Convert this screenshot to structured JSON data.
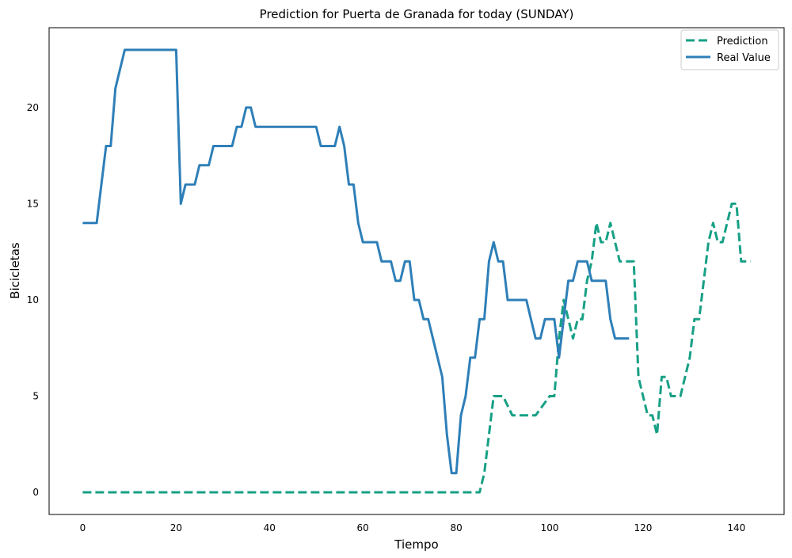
{
  "chart_data": {
    "type": "line",
    "title": "Prediction for Puerta de Granada for today (SUNDAY)",
    "xlabel": "Tiempo",
    "ylabel": "Bicicletas",
    "xlim": [
      -7.2,
      150.2
    ],
    "ylim": [
      -1.15,
      24.15
    ],
    "xticks": [
      0,
      20,
      40,
      60,
      80,
      100,
      120,
      140
    ],
    "yticks": [
      0,
      5,
      10,
      15,
      20
    ],
    "grid": false,
    "legend_position": "top-right",
    "series": [
      {
        "name": "Prediction",
        "color": "#17a085",
        "dash": "dashed",
        "x": [
          0,
          85,
          86,
          88,
          89,
          90,
          92,
          95,
          97,
          100,
          101,
          102,
          103,
          104,
          105,
          106,
          107,
          108,
          109,
          110,
          111,
          112,
          113,
          115,
          117,
          118,
          119,
          120,
          121,
          122,
          123,
          124,
          125,
          126,
          127,
          128,
          129,
          130,
          131,
          132,
          133,
          134,
          135,
          136,
          137,
          138,
          139,
          140,
          141,
          142,
          143
        ],
        "y": [
          0,
          0,
          1,
          5,
          5,
          5,
          4,
          4,
          4,
          5,
          5,
          8,
          10,
          9,
          8,
          9,
          9,
          11,
          12,
          14,
          13,
          13,
          14,
          12,
          12,
          12,
          6,
          5,
          4,
          4,
          3,
          6,
          6,
          5,
          5,
          5,
          6,
          7,
          9,
          9,
          11,
          13,
          14,
          13,
          13,
          14,
          15,
          15,
          12,
          12,
          12
        ]
      },
      {
        "name": "Real Value",
        "color": "#2e7fb8",
        "dash": "solid",
        "x": [
          0,
          3,
          5,
          6,
          7,
          9,
          20,
          21,
          22,
          24,
          25,
          27,
          28,
          32,
          33,
          34,
          35,
          36,
          37,
          50,
          51,
          54,
          55,
          56,
          57,
          58,
          59,
          60,
          63,
          64,
          66,
          67,
          68,
          69,
          70,
          71,
          72,
          73,
          74,
          75,
          76,
          77,
          78,
          79,
          80,
          81,
          82,
          83,
          84,
          85,
          86,
          87,
          88,
          89,
          90,
          91,
          95,
          96,
          97,
          98,
          99,
          100,
          101,
          102,
          103,
          104,
          105,
          106,
          108,
          109,
          110,
          111,
          112,
          113,
          114,
          117
        ],
        "y": [
          14,
          14,
          18,
          18,
          21,
          23,
          23,
          15,
          16,
          16,
          17,
          17,
          18,
          18,
          19,
          19,
          20,
          20,
          19,
          19,
          18,
          18,
          19,
          18,
          16,
          16,
          14,
          13,
          13,
          12,
          12,
          11,
          11,
          12,
          12,
          10,
          10,
          9,
          9,
          8,
          7,
          6,
          3,
          1,
          1,
          4,
          5,
          7,
          7,
          9,
          9,
          12,
          13,
          12,
          12,
          10,
          10,
          9,
          8,
          8,
          9,
          9,
          9,
          7,
          9,
          11,
          11,
          12,
          12,
          11,
          11,
          11,
          11,
          9,
          8,
          8
        ]
      }
    ]
  }
}
